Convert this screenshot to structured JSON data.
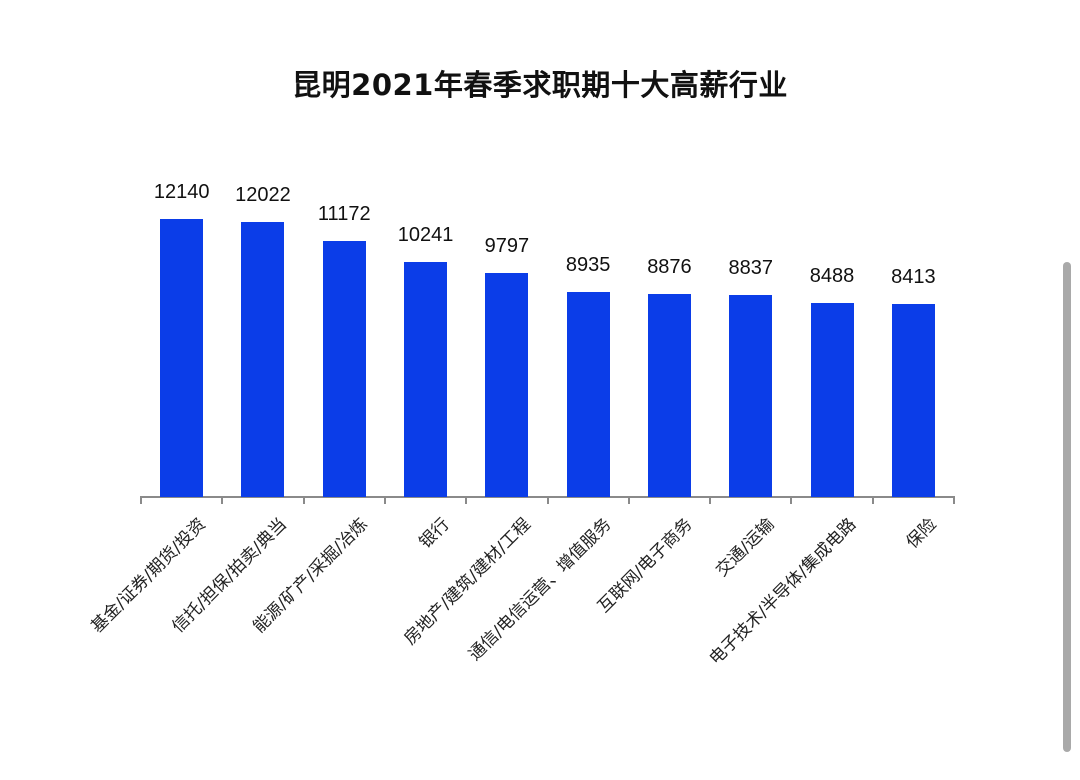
{
  "page": {
    "title": "昆明2021年春季求职期十大高薪行业"
  },
  "chart_data": {
    "type": "bar",
    "title": "昆明2021年春季求职期十大高薪行业",
    "xlabel": "",
    "ylabel": "",
    "categories": [
      "基金/证券/期货/投资",
      "信托/担保/拍卖/典当",
      "能源/矿产/采掘/冶炼",
      "银行",
      "房地产/建筑/建材/工程",
      "通信/电信运营、增值服务",
      "互联网/电子商务",
      "交通/运输",
      "电子技术/半导体/集成电路",
      "保险"
    ],
    "values": [
      12140,
      12022,
      11172,
      10241,
      9797,
      8935,
      8876,
      8837,
      8488,
      8413
    ],
    "data_labels": [
      "12140",
      "12022",
      "11172",
      "10241",
      "9797",
      "8935",
      "8876",
      "8837",
      "8488",
      "8413"
    ],
    "ylim": [
      0,
      12140
    ],
    "grid": false,
    "legend": null,
    "bar_color": "#0b3de8",
    "x_label_rotation": -45
  },
  "ui": {
    "scrollbar": {
      "visible": true
    }
  }
}
